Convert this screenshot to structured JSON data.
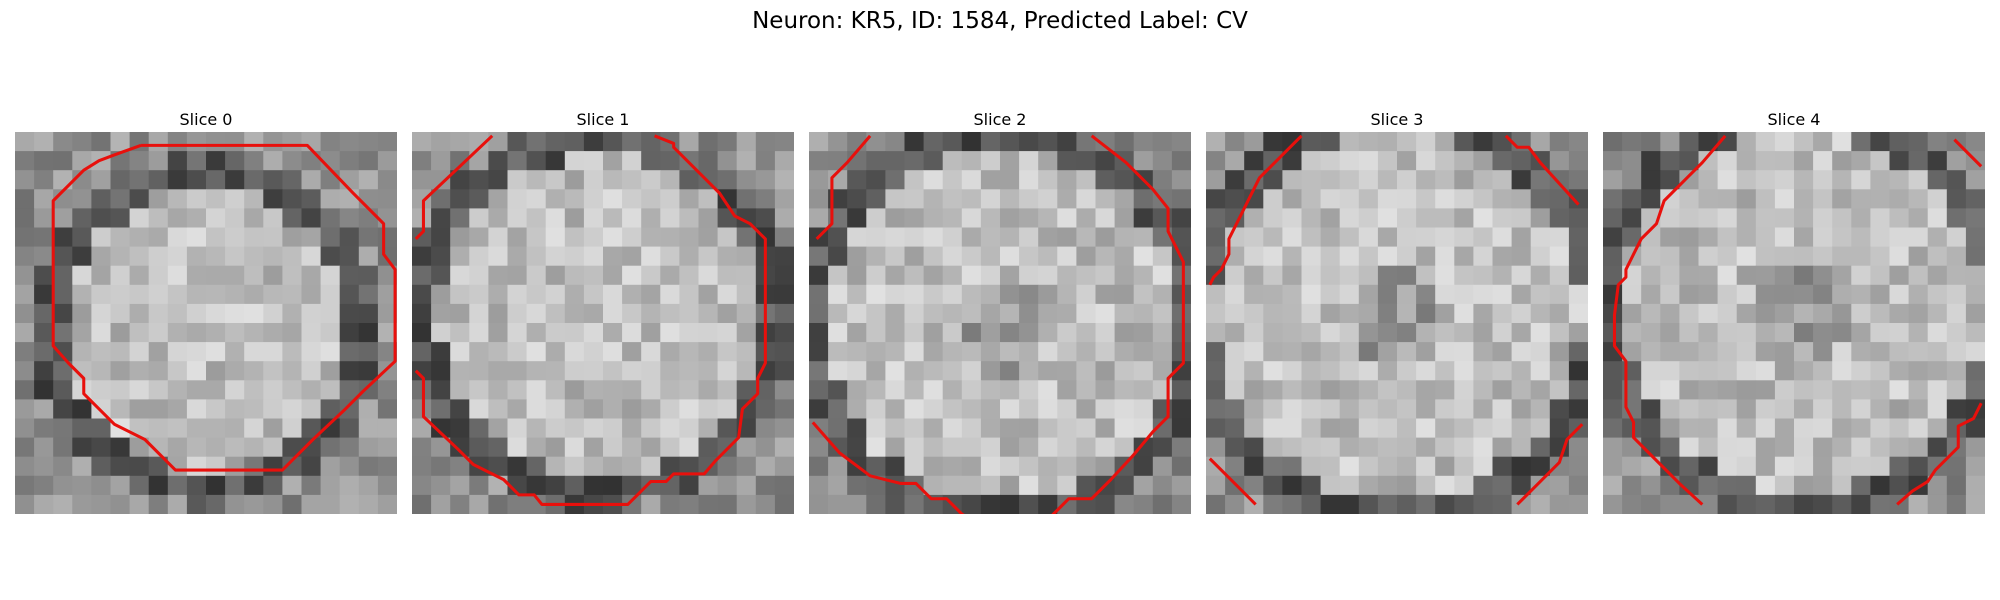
{
  "figure": {
    "title": "Neuron: KR5, ID: 1584, Predicted Label: CV"
  },
  "panels": [
    {
      "title": "Slice 0",
      "contour": [
        [
          6.6,
          0.7
        ],
        [
          15.3,
          0.7
        ],
        [
          17.7,
          3.2
        ],
        [
          19.3,
          4.8
        ],
        [
          19.3,
          6.4
        ],
        [
          19.9,
          7.2
        ],
        [
          19.9,
          12.0
        ],
        [
          18.2,
          13.6
        ],
        [
          17.3,
          14.5
        ],
        [
          15.6,
          16.1
        ],
        [
          14.0,
          17.7
        ],
        [
          8.4,
          17.7
        ],
        [
          6.8,
          16.1
        ],
        [
          5.2,
          15.3
        ],
        [
          3.6,
          13.7
        ],
        [
          3.6,
          12.9
        ],
        [
          2.8,
          12.1
        ],
        [
          2.0,
          11.2
        ],
        [
          2.0,
          3.6
        ],
        [
          3.6,
          2.0
        ],
        [
          4.4,
          1.5
        ],
        [
          5.2,
          1.2
        ]
      ]
    },
    {
      "title": "Slice 1",
      "contour": [
        [
          4.2,
          0.2
        ],
        [
          0.6,
          3.6
        ],
        [
          0.6,
          5.2
        ],
        [
          0.2,
          5.6
        ]
      ],
      "contour2": [
        [
          0.2,
          12.5
        ],
        [
          0.6,
          12.9
        ],
        [
          0.6,
          14.9
        ],
        [
          2.4,
          16.6
        ],
        [
          3.2,
          17.4
        ],
        [
          4.8,
          18.2
        ],
        [
          5.6,
          19.0
        ],
        [
          6.4,
          19.0
        ],
        [
          6.8,
          19.5
        ],
        [
          11.3,
          19.5
        ],
        [
          12.1,
          18.7
        ],
        [
          12.5,
          18.3
        ],
        [
          13.3,
          18.3
        ],
        [
          13.7,
          17.9
        ],
        [
          15.3,
          17.9
        ],
        [
          15.9,
          17.2
        ],
        [
          17.1,
          16.0
        ],
        [
          17.3,
          14.5
        ],
        [
          18.1,
          13.7
        ],
        [
          18.1,
          12.9
        ],
        [
          18.5,
          12.1
        ],
        [
          18.5,
          5.6
        ],
        [
          17.7,
          4.8
        ],
        [
          16.9,
          4.4
        ],
        [
          16.1,
          3.2
        ],
        [
          15.3,
          2.4
        ],
        [
          14.5,
          1.6
        ],
        [
          13.7,
          0.8
        ],
        [
          13.7,
          0.6
        ],
        [
          12.7,
          0.2
        ]
      ]
    },
    {
      "title": "Slice 2",
      "contour": [
        [
          3.2,
          0.2
        ],
        [
          2.0,
          1.6
        ],
        [
          1.2,
          2.4
        ],
        [
          1.2,
          4.8
        ],
        [
          0.4,
          5.6
        ]
      ],
      "contour2": [
        [
          0.2,
          15.2
        ],
        [
          1.6,
          16.8
        ],
        [
          3.2,
          18.0
        ],
        [
          4.8,
          18.4
        ],
        [
          5.6,
          18.4
        ],
        [
          6.4,
          19.2
        ],
        [
          7.2,
          19.2
        ],
        [
          7.6,
          19.6
        ],
        [
          8.0,
          20.0
        ],
        [
          8.8,
          20.5
        ]
      ],
      "contour3": [
        [
          12.2,
          20.5
        ],
        [
          12.6,
          20.2
        ],
        [
          13.2,
          19.6
        ],
        [
          13.6,
          19.2
        ],
        [
          14.8,
          19.2
        ],
        [
          15.8,
          18.2
        ],
        [
          17.0,
          16.9
        ],
        [
          18.0,
          15.7
        ],
        [
          18.8,
          14.9
        ],
        [
          18.8,
          12.9
        ],
        [
          19.2,
          12.5
        ],
        [
          19.6,
          12.1
        ],
        [
          19.6,
          6.8
        ],
        [
          18.8,
          5.2
        ],
        [
          18.8,
          4.0
        ],
        [
          18.0,
          3.0
        ],
        [
          16.6,
          1.6
        ],
        [
          14.8,
          0.2
        ]
      ]
    },
    {
      "title": "Slice 3",
      "contour": [
        [
          5.0,
          0.2
        ],
        [
          3.6,
          1.6
        ],
        [
          2.8,
          2.4
        ],
        [
          2.4,
          3.2
        ],
        [
          2.0,
          4.0
        ],
        [
          1.6,
          4.8
        ],
        [
          1.2,
          5.6
        ],
        [
          1.2,
          6.4
        ],
        [
          0.8,
          7.2
        ],
        [
          0.4,
          7.6
        ],
        [
          0.2,
          8.0
        ]
      ],
      "contour2": [
        [
          15.7,
          0.2
        ],
        [
          16.3,
          0.8
        ],
        [
          16.9,
          0.8
        ],
        [
          17.5,
          1.6
        ],
        [
          19.5,
          3.8
        ]
      ],
      "contour3": [
        [
          0.2,
          17.1
        ],
        [
          1.6,
          18.5
        ],
        [
          2.6,
          19.5
        ]
      ],
      "contour4": [
        [
          16.3,
          19.5
        ],
        [
          17.5,
          18.3
        ],
        [
          18.5,
          17.3
        ],
        [
          18.9,
          16.1
        ],
        [
          19.7,
          15.3
        ]
      ]
    },
    {
      "title": "Slice 4",
      "contour": [
        [
          6.4,
          0.2
        ],
        [
          5.2,
          1.6
        ],
        [
          4.4,
          2.4
        ],
        [
          3.2,
          3.6
        ],
        [
          2.8,
          4.8
        ],
        [
          2.0,
          5.6
        ],
        [
          1.6,
          6.4
        ],
        [
          1.2,
          7.2
        ],
        [
          1.2,
          7.6
        ],
        [
          0.8,
          8.0
        ],
        [
          0.6,
          9.6
        ],
        [
          0.6,
          10.4
        ],
        [
          0.6,
          11.2
        ],
        [
          1.2,
          12.0
        ],
        [
          1.2,
          14.4
        ],
        [
          1.6,
          15.2
        ],
        [
          1.6,
          16.0
        ],
        [
          2.4,
          16.8
        ],
        [
          4.0,
          18.4
        ],
        [
          5.2,
          19.5
        ]
      ],
      "contour2": [
        [
          18.4,
          0.4
        ],
        [
          19.8,
          1.8
        ]
      ],
      "contour3": [
        [
          15.4,
          19.5
        ],
        [
          16.2,
          18.8
        ],
        [
          17.0,
          18.3
        ],
        [
          17.4,
          17.7
        ],
        [
          18.6,
          16.5
        ],
        [
          18.6,
          15.4
        ],
        [
          19.4,
          15.0
        ],
        [
          19.8,
          14.2
        ]
      ]
    }
  ]
}
